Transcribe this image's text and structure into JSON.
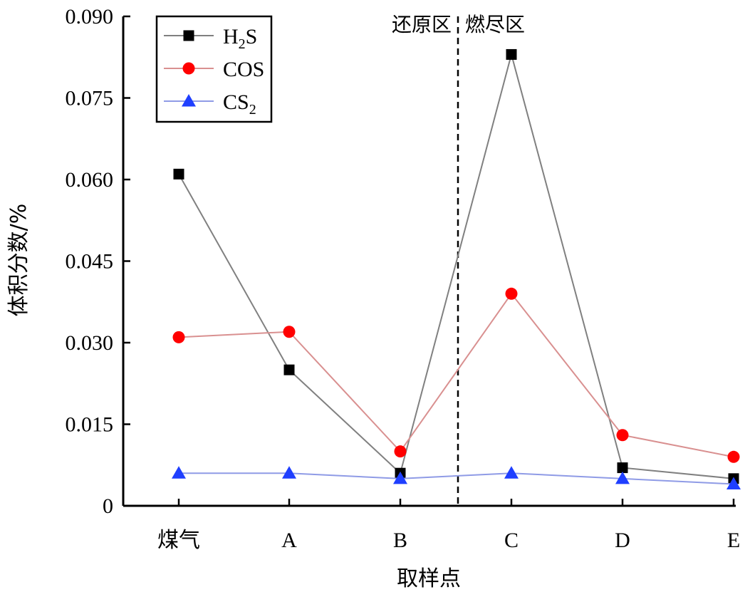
{
  "chart_data": {
    "type": "line",
    "categories": [
      "煤气",
      "A",
      "B",
      "C",
      "D",
      "E"
    ],
    "series": [
      {
        "name": "H2S",
        "name_main": "H",
        "name_sub": "2",
        "name_tail": "S",
        "color": "#000000",
        "line_color": "#808080",
        "marker": "square",
        "values": [
          0.061,
          0.025,
          0.006,
          0.083,
          0.007,
          0.005
        ]
      },
      {
        "name": "COS",
        "name_main": "COS",
        "name_sub": "",
        "name_tail": "",
        "color": "#ff0000",
        "line_color": "#d99090",
        "marker": "circle",
        "values": [
          0.031,
          0.032,
          0.01,
          0.039,
          0.013,
          0.009
        ]
      },
      {
        "name": "CS2",
        "name_main": "CS",
        "name_sub": "2",
        "name_tail": "",
        "color": "#1f3fff",
        "line_color": "#8f9be6",
        "marker": "triangle",
        "values": [
          0.006,
          0.006,
          0.005,
          0.006,
          0.005,
          0.004
        ]
      }
    ],
    "xlabel": "取样点",
    "ylabel": "体积分数/%",
    "ylim": [
      0,
      0.09
    ],
    "yticks": [
      "0",
      "0.015",
      "0.030",
      "0.045",
      "0.060",
      "0.075",
      "0.090"
    ],
    "regions": {
      "left": "还原区",
      "right": "燃尽区"
    },
    "legend_position": "top-left",
    "grid": false
  }
}
